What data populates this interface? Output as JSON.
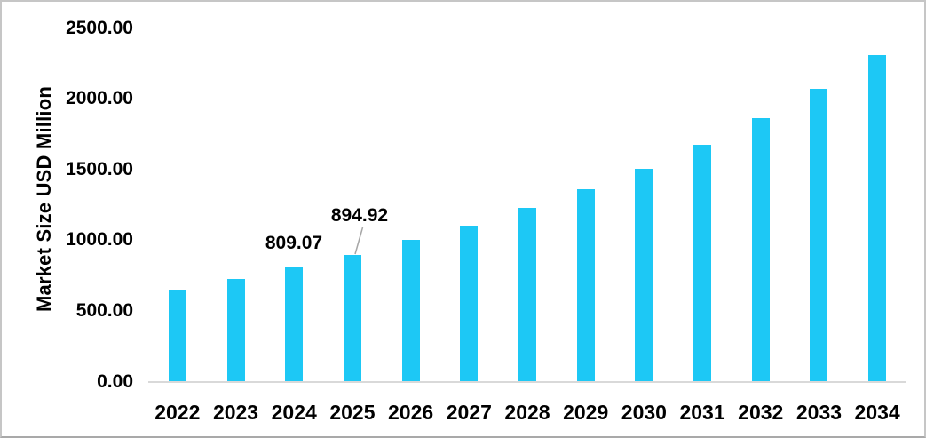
{
  "chart_data": {
    "type": "bar",
    "title": "",
    "xlabel": "",
    "ylabel": "Market Size USD Million",
    "categories": [
      "2022",
      "2023",
      "2024",
      "2025",
      "2026",
      "2027",
      "2028",
      "2029",
      "2030",
      "2031",
      "2032",
      "2033",
      "2034"
    ],
    "series": [
      {
        "name": "Market Size USD Million",
        "values": [
          650,
          725,
          809.07,
          894.92,
          1000,
          1105,
          1228,
          1360,
          1503,
          1675,
          1863,
          2070,
          2310
        ]
      }
    ],
    "ylim": [
      0,
      2500
    ],
    "ytick_labels": [
      "0.00",
      "500.00",
      "1000.00",
      "1500.00",
      "2000.00",
      "2500.00"
    ],
    "ytick_values": [
      0,
      500,
      1000,
      1500,
      2000,
      2500
    ],
    "grid": "off",
    "legend": "none",
    "labeled_points": [
      {
        "category": "2024",
        "label": "809.07",
        "leader_line": false
      },
      {
        "category": "2025",
        "label": "894.92",
        "leader_line": true
      }
    ],
    "colors": {
      "bar": "#1dc8f5",
      "axis_line": "#d9d9d9",
      "leader_line": "#a6a6a6",
      "text": "#000000",
      "frame_border": "#c6c6c6"
    }
  }
}
